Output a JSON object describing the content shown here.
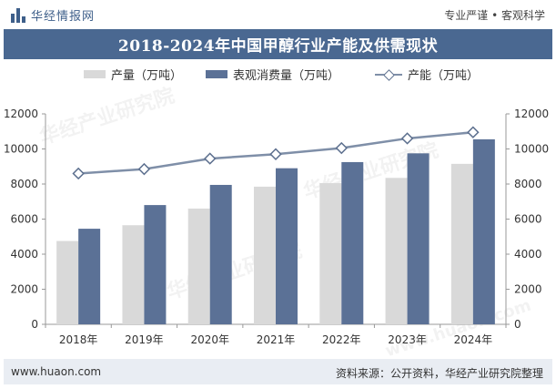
{
  "header": {
    "brand": "华经情报网",
    "tagline": "专业严谨 • 客观科学"
  },
  "title": "2018-2024年中国甲醇行业产能及供需现状",
  "footer": {
    "website": "www.huaon.com",
    "source": "资料来源：公开资料，华经产业研究院整理"
  },
  "watermarks": [
    "华经产业研究院",
    "www.huaon.com"
  ],
  "colors": {
    "production_bar": "#d9d9d9",
    "consumption_bar": "#5b7196",
    "capacity_line": "#7f8fa8",
    "title_bg": "#4a6891"
  },
  "chart_data": {
    "type": "bar",
    "categories": [
      "2018年",
      "2019年",
      "2020年",
      "2021年",
      "2022年",
      "2023年",
      "2024年"
    ],
    "series": [
      {
        "name": "产量（万吨）",
        "type": "bar",
        "axis": "left",
        "values": [
          4750,
          5650,
          6600,
          7850,
          8050,
          8350,
          9150
        ]
      },
      {
        "name": "表观消费量（万吨）",
        "type": "bar",
        "axis": "left",
        "values": [
          5450,
          6800,
          7950,
          8900,
          9250,
          9750,
          10550
        ]
      },
      {
        "name": "产能（万吨）",
        "type": "line",
        "axis": "right",
        "values": [
          8600,
          8850,
          9450,
          9700,
          10050,
          10600,
          10950
        ]
      }
    ],
    "y_left": {
      "min": 0,
      "max": 12000,
      "ticks": [
        0,
        2000,
        4000,
        6000,
        8000,
        10000,
        12000
      ]
    },
    "y_right": {
      "min": 0,
      "max": 12000,
      "ticks": [
        0,
        2000,
        4000,
        6000,
        8000,
        10000,
        12000
      ]
    },
    "legend_position": "top",
    "grid": false
  }
}
